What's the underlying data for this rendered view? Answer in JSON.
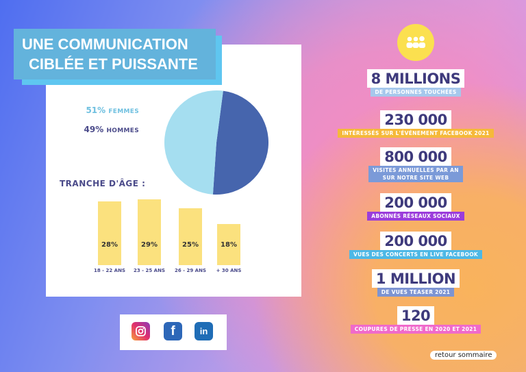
{
  "title": {
    "line1": "UNE COMMUNICATION",
    "line2": "CIBLÉE ET PUISSANTE"
  },
  "gender": {
    "femmes_pct": "51%",
    "femmes_label": "FEMMES",
    "hommes_pct": "49%",
    "hommes_label": "HOMMES"
  },
  "age_title": "TRANCHE D'ÂGE :",
  "colors": {
    "femmes": "#a5def0",
    "hommes": "#4665ad",
    "bars": "#fbe17e",
    "title_bg": "#63b3dc"
  },
  "chart_data": [
    {
      "type": "pie",
      "labels": [
        "Femmes",
        "Hommes"
      ],
      "values": [
        51,
        49
      ]
    },
    {
      "type": "bar",
      "title": "Tranche d'âge",
      "categories": [
        "18 - 22 ANS",
        "23 - 25 ANS",
        "26 - 29 ANS",
        "+ 30 ANS"
      ],
      "values": [
        28,
        29,
        25,
        18
      ],
      "value_labels": [
        "28%",
        "29%",
        "25%",
        "18%"
      ]
    }
  ],
  "social": [
    "instagram",
    "facebook",
    "linkedin"
  ],
  "stats": [
    {
      "num": "8 MILLIONS",
      "label": "DE PERSONNES TOUCHÉES",
      "color": "#a6c8ec"
    },
    {
      "num": "230 000",
      "label": "INTÉRESSÉS SUR L'ÉVÉNEMENT FACEBOOK 2021",
      "color": "#f5b93a"
    },
    {
      "num": "800 000",
      "label": "VISITES ANNUELLES PAR AN",
      "label2": "SUR NOTRE SITE WEB",
      "color": "#7b9ad8"
    },
    {
      "num": "200 000",
      "label": "ABONNÉS RÉSEAUX SOCIAUX",
      "color": "#9b3ddb"
    },
    {
      "num": "200 000",
      "label": "VUES DES CONCERTS EN LIVE FACEBOOK",
      "color": "#4db8e6"
    },
    {
      "num": "1 MILLION",
      "label": "DE VUES TEASER 2021",
      "color": "#7d94d2"
    },
    {
      "num": "120",
      "label": "COUPURES DE PRESSE EN 2020 ET 2021",
      "color": "#f06acb"
    }
  ],
  "retour": "retour sommaire"
}
